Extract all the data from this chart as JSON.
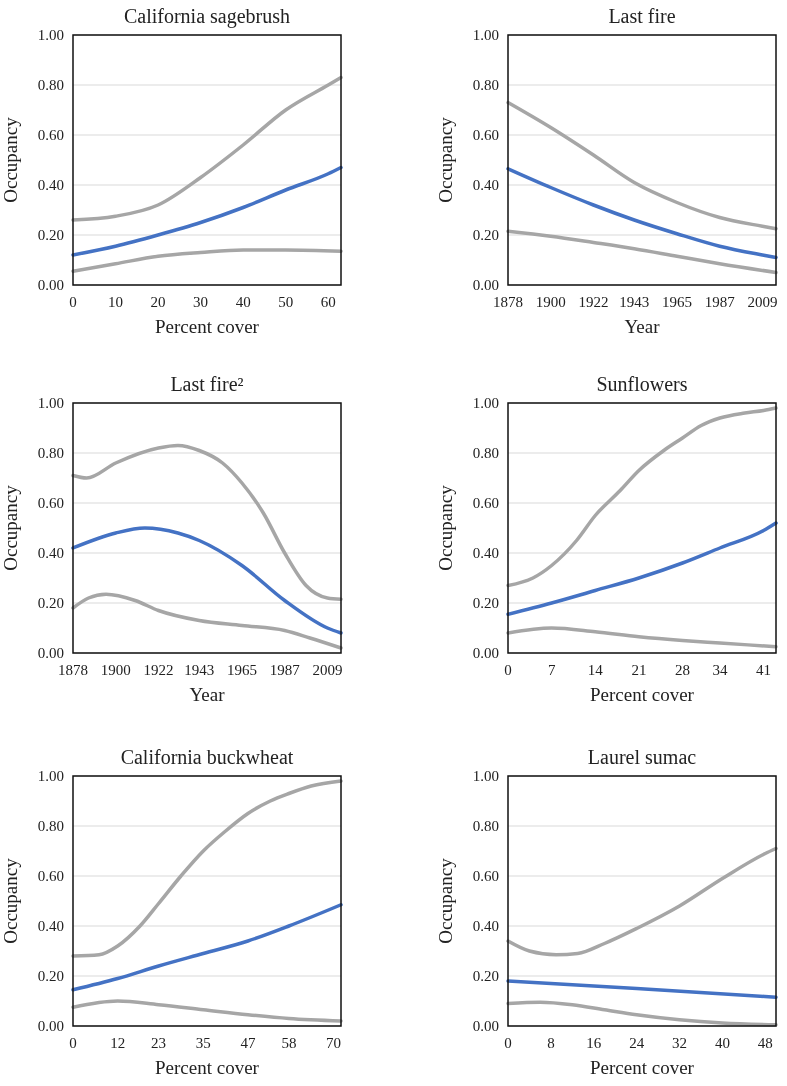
{
  "chart_data": [
    {
      "type": "line",
      "title": "California sagebrush",
      "xlabel": "Percent cover",
      "ylabel": "Occupancy",
      "xlim": [
        0,
        63
      ],
      "xticks": [
        0,
        10,
        20,
        30,
        40,
        50,
        60
      ],
      "ylim": [
        0,
        1
      ],
      "yticks": [
        {
          "value": 0,
          "label": "0.00"
        },
        {
          "value": 0.2,
          "label": "0.20"
        },
        {
          "value": 0.4,
          "label": "0.40"
        },
        {
          "value": 0.6,
          "label": "0.60"
        },
        {
          "value": 0.8,
          "label": "0.80"
        },
        {
          "value": 1,
          "label": "1.00"
        }
      ],
      "grid": "y",
      "series": [
        {
          "color": "#a6a6a6",
          "x": [
            0,
            10,
            20,
            30,
            40,
            50,
            60,
            63
          ],
          "values": [
            0.26,
            0.275,
            0.32,
            0.43,
            0.56,
            0.7,
            0.8,
            0.83
          ]
        },
        {
          "color": "#4472c4",
          "x": [
            0,
            10,
            20,
            30,
            40,
            50,
            60,
            63
          ],
          "values": [
            0.12,
            0.155,
            0.2,
            0.25,
            0.31,
            0.38,
            0.445,
            0.47
          ]
        },
        {
          "color": "#a6a6a6",
          "x": [
            0,
            10,
            20,
            30,
            40,
            50,
            63
          ],
          "values": [
            0.055,
            0.085,
            0.115,
            0.13,
            0.14,
            0.14,
            0.135
          ]
        }
      ]
    },
    {
      "type": "line",
      "title": "Last fire",
      "xlabel": "Year",
      "ylabel": "Occupancy",
      "xlim": [
        1878,
        2016
      ],
      "xticks": [
        1878,
        1900,
        1922,
        1943,
        1965,
        1987,
        2009
      ],
      "ylim": [
        0,
        1
      ],
      "yticks": [
        {
          "value": 0,
          "label": "0.00"
        },
        {
          "value": 0.2,
          "label": "0.20"
        },
        {
          "value": 0.4,
          "label": "0.40"
        },
        {
          "value": 0.6,
          "label": "0.60"
        },
        {
          "value": 0.8,
          "label": "0.80"
        },
        {
          "value": 1,
          "label": "1.00"
        }
      ],
      "grid": "y",
      "series": [
        {
          "color": "#a6a6a6",
          "x": [
            1878,
            1900,
            1922,
            1943,
            1965,
            1987,
            2009,
            2016
          ],
          "values": [
            0.73,
            0.63,
            0.52,
            0.41,
            0.33,
            0.27,
            0.235,
            0.225
          ]
        },
        {
          "color": "#4472c4",
          "x": [
            1878,
            1900,
            1922,
            1943,
            1965,
            1987,
            2009,
            2016
          ],
          "values": [
            0.465,
            0.39,
            0.32,
            0.26,
            0.205,
            0.155,
            0.12,
            0.11
          ]
        },
        {
          "color": "#a6a6a6",
          "x": [
            1878,
            1900,
            1922,
            1943,
            1965,
            1987,
            2016
          ],
          "values": [
            0.215,
            0.195,
            0.17,
            0.145,
            0.115,
            0.085,
            0.05
          ]
        }
      ]
    },
    {
      "type": "line",
      "title": "Last fire²",
      "xlabel": "Year",
      "ylabel": "Occupancy",
      "xlim": [
        1878,
        2016
      ],
      "xticks": [
        1878,
        1900,
        1922,
        1943,
        1965,
        1987,
        2009
      ],
      "ylim": [
        0,
        1
      ],
      "yticks": [
        {
          "value": 0,
          "label": "0.00"
        },
        {
          "value": 0.2,
          "label": "0.20"
        },
        {
          "value": 0.4,
          "label": "0.40"
        },
        {
          "value": 0.6,
          "label": "0.60"
        },
        {
          "value": 0.8,
          "label": "0.80"
        },
        {
          "value": 1,
          "label": "1.00"
        }
      ],
      "grid": "y",
      "series": [
        {
          "color": "#a6a6a6",
          "x": [
            1878,
            1885,
            1900,
            1922,
            1932,
            1943,
            1955,
            1965,
            1976,
            1987,
            1998,
            2009,
            2016
          ],
          "values": [
            0.71,
            0.7,
            0.76,
            0.82,
            0.83,
            0.81,
            0.76,
            0.68,
            0.56,
            0.4,
            0.27,
            0.22,
            0.215
          ]
        },
        {
          "color": "#4472c4",
          "x": [
            1878,
            1900,
            1915,
            1932,
            1943,
            1965,
            1987,
            2009,
            2016
          ],
          "values": [
            0.42,
            0.48,
            0.5,
            0.48,
            0.45,
            0.35,
            0.21,
            0.1,
            0.08
          ]
        },
        {
          "color": "#a6a6a6",
          "x": [
            1878,
            1886,
            1895,
            1910,
            1922,
            1943,
            1965,
            1987,
            2000,
            2016
          ],
          "values": [
            0.18,
            0.22,
            0.235,
            0.21,
            0.17,
            0.13,
            0.11,
            0.09,
            0.06,
            0.02
          ]
        }
      ]
    },
    {
      "type": "line",
      "title": "Sunflowers",
      "xlabel": "Percent cover",
      "ylabel": "Occupancy",
      "xlim": [
        0,
        43
      ],
      "xticks": [
        0,
        7,
        14,
        21,
        28,
        34,
        41
      ],
      "ylim": [
        0,
        1
      ],
      "yticks": [
        {
          "value": 0,
          "label": "0.00"
        },
        {
          "value": 0.2,
          "label": "0.20"
        },
        {
          "value": 0.4,
          "label": "0.40"
        },
        {
          "value": 0.6,
          "label": "0.60"
        },
        {
          "value": 0.8,
          "label": "0.80"
        },
        {
          "value": 1,
          "label": "1.00"
        }
      ],
      "grid": "y",
      "series": [
        {
          "color": "#a6a6a6",
          "x": [
            0,
            4,
            7,
            11,
            14,
            18,
            21,
            25,
            28,
            31,
            34,
            38,
            41,
            43
          ],
          "values": [
            0.27,
            0.3,
            0.35,
            0.45,
            0.55,
            0.65,
            0.73,
            0.81,
            0.86,
            0.91,
            0.94,
            0.96,
            0.97,
            0.98
          ]
        },
        {
          "color": "#4472c4",
          "x": [
            0,
            7,
            14,
            21,
            28,
            34,
            41,
            43
          ],
          "values": [
            0.155,
            0.2,
            0.25,
            0.3,
            0.36,
            0.42,
            0.49,
            0.52
          ]
        },
        {
          "color": "#a6a6a6",
          "x": [
            0,
            7,
            14,
            21,
            28,
            34,
            43
          ],
          "values": [
            0.08,
            0.1,
            0.085,
            0.065,
            0.05,
            0.04,
            0.025
          ]
        }
      ]
    },
    {
      "type": "line",
      "title": "California buckwheat",
      "xlabel": "Percent cover",
      "ylabel": "Occupancy",
      "xlim": [
        0,
        72
      ],
      "xticks": [
        0,
        12,
        23,
        35,
        47,
        58,
        70
      ],
      "ylim": [
        0,
        1
      ],
      "yticks": [
        {
          "value": 0,
          "label": "0.00"
        },
        {
          "value": 0.2,
          "label": "0.20"
        },
        {
          "value": 0.4,
          "label": "0.40"
        },
        {
          "value": 0.6,
          "label": "0.60"
        },
        {
          "value": 0.8,
          "label": "0.80"
        },
        {
          "value": 1,
          "label": "1.00"
        }
      ],
      "grid": "y",
      "series": [
        {
          "color": "#a6a6a6",
          "x": [
            0,
            7,
            12,
            18,
            23,
            29,
            35,
            41,
            47,
            53,
            58,
            64,
            72
          ],
          "values": [
            0.28,
            0.285,
            0.32,
            0.4,
            0.49,
            0.6,
            0.7,
            0.78,
            0.85,
            0.9,
            0.93,
            0.96,
            0.98
          ]
        },
        {
          "color": "#4472c4",
          "x": [
            0,
            12,
            23,
            35,
            47,
            58,
            72
          ],
          "values": [
            0.145,
            0.19,
            0.24,
            0.29,
            0.34,
            0.4,
            0.485
          ]
        },
        {
          "color": "#a6a6a6",
          "x": [
            0,
            12,
            23,
            35,
            47,
            58,
            72
          ],
          "values": [
            0.075,
            0.1,
            0.085,
            0.065,
            0.045,
            0.03,
            0.02
          ]
        }
      ]
    },
    {
      "type": "line",
      "title": "Laurel sumac",
      "xlabel": "Percent cover",
      "ylabel": "Occupancy",
      "xlim": [
        0,
        50
      ],
      "xticks": [
        0,
        8,
        16,
        24,
        32,
        40,
        48
      ],
      "ylim": [
        0,
        1
      ],
      "yticks": [
        {
          "value": 0,
          "label": "0.00"
        },
        {
          "value": 0.2,
          "label": "0.20"
        },
        {
          "value": 0.4,
          "label": "0.40"
        },
        {
          "value": 0.6,
          "label": "0.60"
        },
        {
          "value": 0.8,
          "label": "0.80"
        },
        {
          "value": 1,
          "label": "1.00"
        }
      ],
      "grid": "y",
      "series": [
        {
          "color": "#a6a6a6",
          "x": [
            0,
            4,
            9,
            13,
            18,
            24,
            32,
            40,
            48,
            50
          ],
          "values": [
            0.34,
            0.3,
            0.285,
            0.29,
            0.33,
            0.39,
            0.48,
            0.59,
            0.69,
            0.71
          ]
        },
        {
          "color": "#4472c4",
          "x": [
            0,
            24,
            50
          ],
          "values": [
            0.18,
            0.15,
            0.115
          ]
        },
        {
          "color": "#a6a6a6",
          "x": [
            0,
            6,
            12,
            18,
            24,
            32,
            40,
            50
          ],
          "values": [
            0.09,
            0.095,
            0.085,
            0.065,
            0.045,
            0.025,
            0.012,
            0.005
          ]
        }
      ]
    }
  ]
}
